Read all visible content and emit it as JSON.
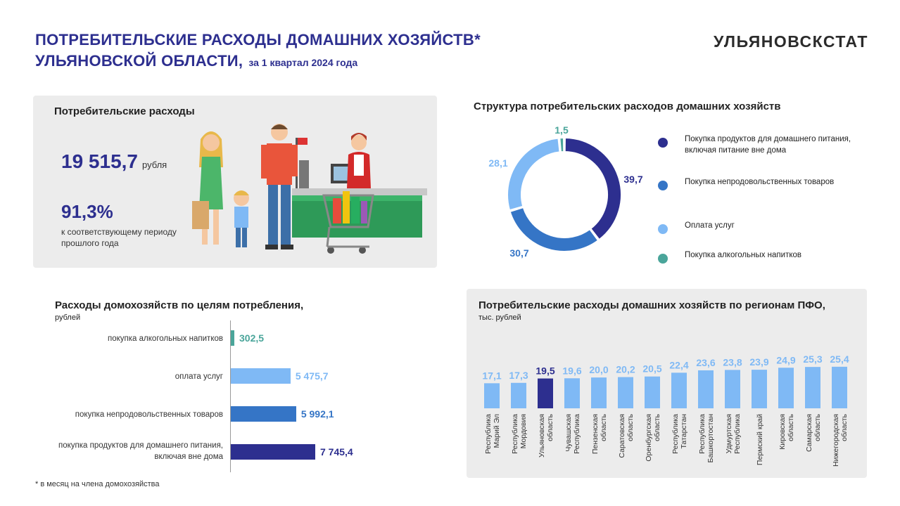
{
  "header": {
    "title_line1": "ПОТРЕБИТЕЛЬСКИЕ РАСХОДЫ ДОМАШНИХ ХОЗЯЙСТВ*",
    "title_line2": "УЛЬЯНОВСКОЙ ОБЛАСТИ,",
    "subtitle": "за 1 квартал 2024 года",
    "brand": "УЛЬЯНОВСКСТАТ"
  },
  "summary": {
    "heading": "Потребительские расходы",
    "value": "19 515,7",
    "value_unit": "рубля",
    "change": "91,3%",
    "change_note": "к соответствующему периоду прошлого года"
  },
  "footnote": "* в месяц на члена домохозяйства",
  "colors": {
    "dark_blue": "#2d2f8f",
    "mid_blue": "#3575c6",
    "light_blue": "#7fb9f5",
    "teal": "#4aa59a",
    "panel_bg": "#ececec"
  },
  "chart_data": [
    {
      "type": "pie",
      "title": "Структура потребительских расходов домашних хозяйств",
      "slices": [
        {
          "label": "Покупка продуктов для домашнего питания, включая питание вне дома",
          "value": 39.7,
          "display": "39,7",
          "color": "#2d2f8f"
        },
        {
          "label": "Покупка непродовольственных товаров",
          "value": 30.7,
          "display": "30,7",
          "color": "#3575c6"
        },
        {
          "label": "Оплата услуг",
          "value": 28.1,
          "display": "28,1",
          "color": "#7fb9f5"
        },
        {
          "label": "Покупка алкогольных напитков",
          "value": 1.5,
          "display": "1,5",
          "color": "#4aa59a"
        }
      ]
    },
    {
      "type": "bar",
      "orientation": "horizontal",
      "title": "Расходы домохозяйств по целям потребления,",
      "unit": "рублей",
      "categories": [
        "покупка алкогольных напитков",
        "оплата услуг",
        "покупка непродовольственных товаров",
        "покупка продуктов для домашнего питания, включая вне дома"
      ],
      "values": [
        302.5,
        5475.7,
        5992.1,
        7745.4
      ],
      "labels": [
        "302,5",
        "5 475,7",
        "5 992,1",
        "7 745,4"
      ],
      "colors": [
        "#4aa59a",
        "#7fb9f5",
        "#3575c6",
        "#2d2f8f"
      ]
    },
    {
      "type": "bar",
      "title": "Потребительские расходы домашних хозяйств по регионам ПФО,",
      "unit": "тыс. рублей",
      "categories": [
        "Республика Марий Эл",
        "Республика Мордовия",
        "Ульяновская область",
        "Чувашская Республика",
        "Пензенская область",
        "Саратовская область",
        "Оренбургская область",
        "Республика Татарстан",
        "Республика Башкортостан",
        "Удмуртская Республика",
        "Пермский край",
        "Кировская область",
        "Самарская область",
        "Нижегородская область"
      ],
      "category_lines": [
        [
          "Республика",
          "Марий Эл"
        ],
        [
          "Республика",
          "Мордовия"
        ],
        [
          "Ульяновская",
          "область"
        ],
        [
          "Чувашская",
          "Республика"
        ],
        [
          "Пензенская",
          "область"
        ],
        [
          "Саратовская",
          "область"
        ],
        [
          "Оренбургская",
          "область"
        ],
        [
          "Республика",
          "Татарстан"
        ],
        [
          "Республика",
          "Башкортостан"
        ],
        [
          "Удмуртская",
          "Республика"
        ],
        [
          "Пермский край"
        ],
        [
          "Кировская",
          "область"
        ],
        [
          "Самарская",
          "область"
        ],
        [
          "Нижегородская",
          "область"
        ]
      ],
      "values": [
        17.1,
        17.3,
        19.5,
        19.6,
        20.0,
        20.2,
        20.5,
        22.4,
        23.6,
        23.8,
        23.9,
        24.9,
        25.3,
        25.4
      ],
      "labels": [
        "17,1",
        "17,3",
        "19,5",
        "19,6",
        "20,0",
        "20,2",
        "20,5",
        "22,4",
        "23,6",
        "23,8",
        "23,9",
        "24,9",
        "25,3",
        "25,4"
      ],
      "highlight_index": 2,
      "bar_color": "#7fb9f5",
      "highlight_color": "#2d2f8f"
    }
  ]
}
